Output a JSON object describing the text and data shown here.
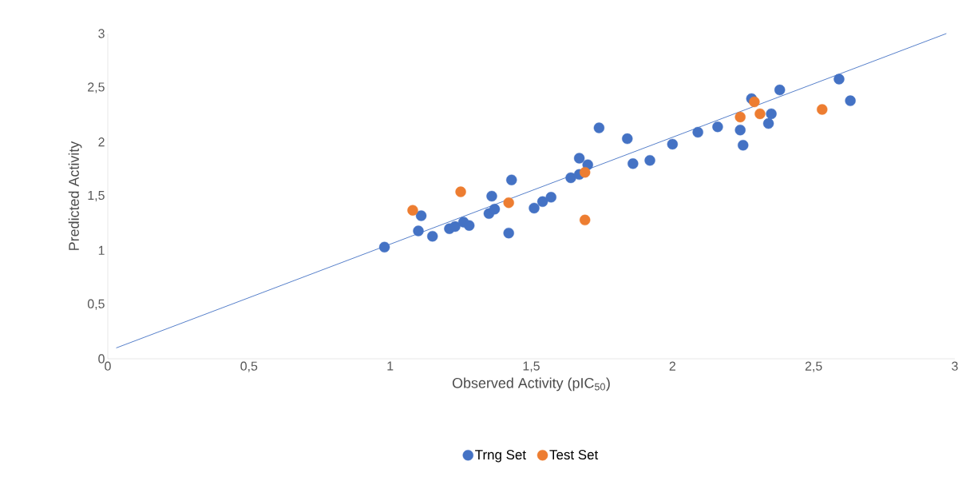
{
  "chart_data": {
    "type": "scatter",
    "xlabel": "Observed Activity (pIC$_{50}$)",
    "ylabel": "Predicted Activity",
    "xlim": [
      0,
      3
    ],
    "ylim": [
      0,
      3
    ],
    "xticks": [
      0,
      {
        "value": 0.5,
        "label": "0,5"
      },
      1,
      {
        "value": 1.5,
        "label": "1,5"
      },
      2,
      {
        "value": 2.5,
        "label": "2,5"
      },
      3
    ],
    "yticks": [
      0,
      {
        "value": 0.5,
        "label": "0,5"
      },
      1,
      {
        "value": 1.5,
        "label": "1,5"
      },
      2,
      {
        "value": 2.5,
        "label": "2,5"
      },
      3
    ],
    "grid": false,
    "legend": "bottom",
    "series": [
      {
        "name": "Trng Set",
        "marker": "circle",
        "color": "#4472c4",
        "x": [
          0.98,
          1.1,
          1.11,
          1.15,
          1.21,
          1.23,
          1.26,
          1.28,
          1.35,
          1.36,
          1.37,
          1.42,
          1.43,
          1.51,
          1.54,
          1.57,
          1.64,
          1.67,
          1.67,
          1.7,
          1.74,
          1.84,
          1.86,
          1.92,
          2.0,
          2.09,
          2.16,
          2.24,
          2.25,
          2.28,
          2.34,
          2.35,
          2.38,
          2.59,
          2.63
        ],
        "values": [
          1.03,
          1.18,
          1.32,
          1.13,
          1.2,
          1.22,
          1.26,
          1.23,
          1.34,
          1.5,
          1.38,
          1.16,
          1.65,
          1.39,
          1.45,
          1.49,
          1.67,
          1.7,
          1.85,
          1.79,
          2.13,
          2.03,
          1.8,
          1.83,
          1.98,
          2.09,
          2.14,
          2.11,
          1.97,
          2.4,
          2.17,
          2.26,
          2.48,
          2.58,
          2.38
        ]
      },
      {
        "name": "Test Set",
        "marker": "circle",
        "color": "#ed7d31",
        "x": [
          1.08,
          1.25,
          1.42,
          1.69,
          1.69,
          2.24,
          2.29,
          2.31,
          2.53
        ],
        "values": [
          1.37,
          1.54,
          1.44,
          1.72,
          1.28,
          2.23,
          2.37,
          2.26,
          2.3
        ]
      },
      {
        "type": "line",
        "marker": "none",
        "color": "#4472c4",
        "x": [
          0.03,
          2.97
        ],
        "values": [
          0.1,
          3.0
        ]
      }
    ]
  }
}
